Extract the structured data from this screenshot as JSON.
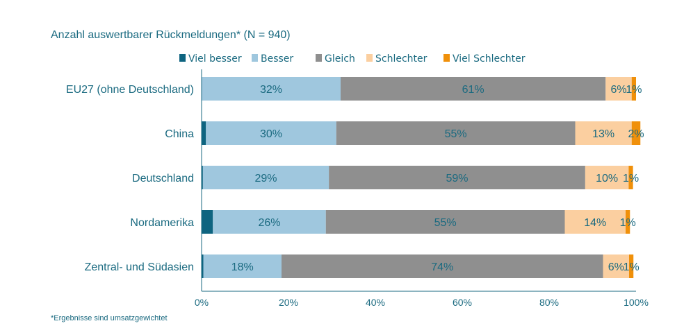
{
  "chart_data": {
    "type": "bar",
    "orientation": "horizontal",
    "stacked": true,
    "title": "Anzahl auswertbarer Rückmeldungen* (N = 940)",
    "footnote": "*Ergebnisse sind umsatzgewichtet",
    "legend_position": "top",
    "categories": [
      "EU27 (ohne Deutschland)",
      "China",
      "Deutschland",
      "Nordamerika",
      "Zentral- und Südasien"
    ],
    "series": [
      {
        "name": "Viel besser",
        "color": "#0e6480",
        "values": [
          0,
          1,
          0.3,
          2.6,
          0.4
        ],
        "labels": [
          null,
          null,
          null,
          null,
          null
        ]
      },
      {
        "name": "Besser",
        "color": "#9fc7de",
        "values": [
          32,
          30,
          29,
          26,
          18
        ],
        "labels": [
          "32%",
          "30%",
          "29%",
          "26%",
          "18%"
        ]
      },
      {
        "name": "Gleich",
        "color": "#8f8f8f",
        "values": [
          61,
          55,
          59,
          55,
          74
        ],
        "labels": [
          "61%",
          "55%",
          "59%",
          "55%",
          "74%"
        ]
      },
      {
        "name": "Schlechter",
        "color": "#fbcfa0",
        "values": [
          6,
          13,
          10,
          14,
          6
        ],
        "labels": [
          "6%",
          "13%",
          "10%",
          "14%",
          "6%"
        ]
      },
      {
        "name": "Viel Schlechter",
        "color": "#f0900a",
        "values": [
          1,
          2,
          1,
          1,
          1
        ],
        "labels": [
          "1%",
          "2%",
          "1%",
          "1%",
          "1%"
        ]
      }
    ],
    "xlim": [
      0,
      100
    ],
    "xticks": [
      "0%",
      "20%",
      "40%",
      "60%",
      "80%",
      "100%"
    ],
    "grid": false
  }
}
